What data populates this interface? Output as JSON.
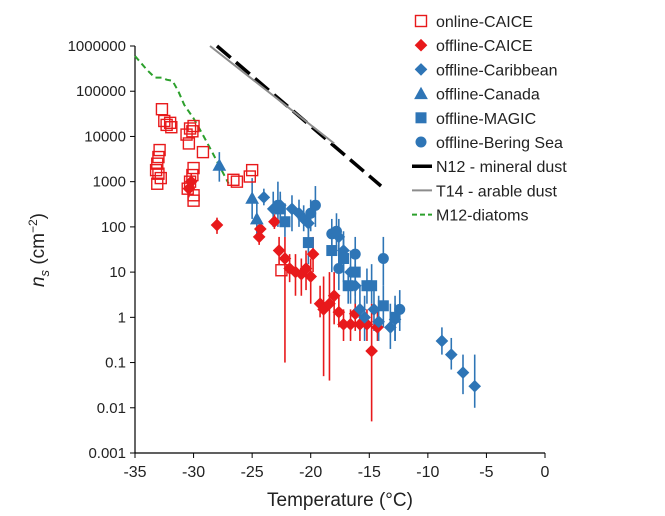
{
  "chart_data": {
    "type": "scatter",
    "title": "",
    "xlabel": "Temperature (°C)",
    "ylabel_main": "n",
    "ylabel_sub": "s",
    "ylabel_unit": " (cm",
    "ylabel_exp": "−2",
    "ylabel_close": ")",
    "xlim": [
      -35,
      0
    ],
    "ylim": [
      0.001,
      1000000
    ],
    "y_scale": "log",
    "grid": false,
    "legend_position": "top-right",
    "x_ticks": [
      -35,
      -30,
      -25,
      -20,
      -15,
      -10,
      -5,
      0
    ],
    "x_tick_labels": [
      "-35",
      "-30",
      "-25",
      "-20",
      "-15",
      "-10",
      "-5",
      "0"
    ],
    "y_ticks": [
      0.001,
      0.01,
      0.1,
      1,
      10,
      100,
      1000,
      10000,
      100000,
      1000000
    ],
    "y_tick_labels": [
      "0.001",
      "0.01",
      "0.1",
      "1",
      "10",
      "100",
      "1000",
      "10000",
      "100000",
      "1000000"
    ],
    "series": [
      {
        "name": "online-CAICE",
        "marker": "square-open",
        "color": "#e8191b",
        "points": [
          {
            "x": -33.2,
            "y": 1800
          },
          {
            "x": -33.1,
            "y": 2500
          },
          {
            "x": -33.0,
            "y": 1500
          },
          {
            "x": -33.0,
            "y": 3500
          },
          {
            "x": -32.9,
            "y": 5000
          },
          {
            "x": -33.1,
            "y": 900
          },
          {
            "x": -32.8,
            "y": 1200
          },
          {
            "x": -32.7,
            "y": 40000
          },
          {
            "x": -32.5,
            "y": 22000
          },
          {
            "x": -32.3,
            "y": 18000
          },
          {
            "x": -32.0,
            "y": 20000
          },
          {
            "x": -31.9,
            "y": 16000
          },
          {
            "x": -30.6,
            "y": 11000
          },
          {
            "x": -30.4,
            "y": 7000
          },
          {
            "x": -30.3,
            "y": 15000
          },
          {
            "x": -30.1,
            "y": 13000
          },
          {
            "x": -30.0,
            "y": 17000
          },
          {
            "x": -30.5,
            "y": 700
          },
          {
            "x": -30.3,
            "y": 1000
          },
          {
            "x": -30.1,
            "y": 1400
          },
          {
            "x": -30.0,
            "y": 2000
          },
          {
            "x": -30.0,
            "y": 500
          },
          {
            "x": -30.0,
            "y": 380
          },
          {
            "x": -29.2,
            "y": 4500
          },
          {
            "x": -26.6,
            "y": 1100
          },
          {
            "x": -26.3,
            "y": 1000
          },
          {
            "x": -25.2,
            "y": 1300
          },
          {
            "x": -25.0,
            "y": 1800
          },
          {
            "x": -22.5,
            "y": 11
          }
        ]
      },
      {
        "name": "offline-CAICE",
        "marker": "diamond",
        "color": "#e8191b",
        "points": [
          {
            "x": -30.4,
            "y": 700,
            "lo": 450,
            "hi": 1100
          },
          {
            "x": -30.2,
            "y": 1000,
            "lo": 600,
            "hi": 1500
          },
          {
            "x": -28.0,
            "y": 110,
            "lo": 70,
            "hi": 160
          },
          {
            "x": -24.4,
            "y": 60,
            "lo": 40,
            "hi": 90
          },
          {
            "x": -24.3,
            "y": 90,
            "lo": 60,
            "hi": 140
          },
          {
            "x": -23.1,
            "y": 130,
            "lo": 90,
            "hi": 190
          },
          {
            "x": -22.7,
            "y": 30,
            "lo": 15,
            "hi": 60
          },
          {
            "x": -22.2,
            "y": 20,
            "lo": 0.1,
            "hi": 60
          },
          {
            "x": -21.8,
            "y": 12,
            "lo": 6,
            "hi": 25
          },
          {
            "x": -21.3,
            "y": 10,
            "lo": 3,
            "hi": 25
          },
          {
            "x": -20.8,
            "y": 9,
            "lo": 3,
            "hi": 20
          },
          {
            "x": -20.4,
            "y": 12,
            "lo": 4,
            "hi": 30
          },
          {
            "x": -20.0,
            "y": 8,
            "lo": 2,
            "hi": 20
          },
          {
            "x": -19.8,
            "y": 25,
            "lo": 10,
            "hi": 60
          },
          {
            "x": -19.2,
            "y": 2,
            "lo": 1,
            "hi": 5
          },
          {
            "x": -18.9,
            "y": 1.5,
            "lo": 0.05,
            "hi": 8
          },
          {
            "x": -18.4,
            "y": 2,
            "lo": 0.04,
            "hi": 10
          },
          {
            "x": -18.0,
            "y": 3,
            "lo": 0.7,
            "hi": 10
          },
          {
            "x": -17.6,
            "y": 1.3,
            "lo": 0.6,
            "hi": 3
          },
          {
            "x": -17.2,
            "y": 0.7,
            "lo": 0.3,
            "hi": 1.5
          },
          {
            "x": -16.6,
            "y": 0.7,
            "lo": 0.3,
            "hi": 1.5
          },
          {
            "x": -16.2,
            "y": 1.2,
            "lo": 0.5,
            "hi": 2.5
          },
          {
            "x": -15.8,
            "y": 0.7,
            "lo": 0.3,
            "hi": 1.5
          },
          {
            "x": -15.2,
            "y": 0.7,
            "lo": 0.3,
            "hi": 1.5
          },
          {
            "x": -14.8,
            "y": 0.18,
            "lo": 0.005,
            "hi": 2
          },
          {
            "x": -14.3,
            "y": 0.6,
            "lo": 0.3,
            "hi": 1.5
          }
        ]
      },
      {
        "name": "offline-Caribbean",
        "marker": "diamond",
        "color": "#2e75b6",
        "points": [
          {
            "x": -24.0,
            "y": 450,
            "lo": 300,
            "hi": 700
          },
          {
            "x": -23.2,
            "y": 250,
            "lo": 100,
            "hi": 600
          },
          {
            "x": -22.6,
            "y": 300,
            "lo": 100,
            "hi": 600
          },
          {
            "x": -21.6,
            "y": 250,
            "lo": 80,
            "hi": 500
          },
          {
            "x": -21.0,
            "y": 200,
            "lo": 100,
            "hi": 400
          },
          {
            "x": -20.6,
            "y": 150,
            "lo": 80,
            "hi": 300
          },
          {
            "x": -20.2,
            "y": 120,
            "lo": 60,
            "hi": 250
          },
          {
            "x": -17.6,
            "y": 60,
            "lo": 20,
            "hi": 150
          },
          {
            "x": -17.2,
            "y": 30,
            "lo": 10,
            "hi": 80
          },
          {
            "x": -16.6,
            "y": 10,
            "lo": 2,
            "hi": 30
          },
          {
            "x": -16.2,
            "y": 5,
            "lo": 2,
            "hi": 15
          },
          {
            "x": -15.8,
            "y": 1.5,
            "lo": 0.5,
            "hi": 5
          },
          {
            "x": -15.4,
            "y": 1.0,
            "lo": 0.3,
            "hi": 3
          },
          {
            "x": -14.6,
            "y": 1.5,
            "lo": 0.5,
            "hi": 5
          },
          {
            "x": -14.2,
            "y": 0.8,
            "lo": 0.3,
            "hi": 3
          },
          {
            "x": -13.2,
            "y": 0.6,
            "lo": 0.2,
            "hi": 2
          },
          {
            "x": -12.8,
            "y": 0.9,
            "lo": 0.3,
            "hi": 2
          },
          {
            "x": -8.8,
            "y": 0.3,
            "lo": 0.15,
            "hi": 0.6
          },
          {
            "x": -8.0,
            "y": 0.15,
            "lo": 0.07,
            "hi": 0.35
          },
          {
            "x": -7.0,
            "y": 0.06,
            "lo": 0.02,
            "hi": 0.15
          },
          {
            "x": -6.0,
            "y": 0.03,
            "lo": 0.01,
            "hi": 0.15
          }
        ]
      },
      {
        "name": "offline-Canada",
        "marker": "triangle",
        "color": "#2e75b6",
        "points": [
          {
            "x": -27.8,
            "y": 2300,
            "lo": 1000,
            "hi": 4500
          },
          {
            "x": -25.0,
            "y": 430,
            "lo": 150,
            "hi": 1200
          },
          {
            "x": -24.6,
            "y": 150,
            "lo": 60,
            "hi": 350
          }
        ]
      },
      {
        "name": "offline-MAGIC",
        "marker": "square",
        "color": "#2e75b6",
        "points": [
          {
            "x": -22.6,
            "y": 250,
            "lo": 120,
            "hi": 500
          },
          {
            "x": -22.2,
            "y": 130,
            "lo": 60,
            "hi": 300
          },
          {
            "x": -20.2,
            "y": 45,
            "lo": 15,
            "hi": 120
          },
          {
            "x": -18.2,
            "y": 30,
            "lo": 10,
            "hi": 80
          },
          {
            "x": -17.2,
            "y": 20,
            "lo": 6,
            "hi": 60
          },
          {
            "x": -16.8,
            "y": 5,
            "lo": 2,
            "hi": 12
          },
          {
            "x": -16.2,
            "y": 10,
            "lo": 3,
            "hi": 25
          },
          {
            "x": -15.2,
            "y": 5,
            "lo": 2,
            "hi": 12
          },
          {
            "x": -14.8,
            "y": 5,
            "lo": 2,
            "hi": 15
          },
          {
            "x": -13.8,
            "y": 1.8,
            "lo": 0.6,
            "hi": 5
          },
          {
            "x": -12.8,
            "y": 1.0,
            "lo": 0.3,
            "hi": 3
          }
        ]
      },
      {
        "name": "offline-Bering Sea",
        "marker": "circle",
        "color": "#2e75b6",
        "points": [
          {
            "x": -22.8,
            "y": 300,
            "lo": 100,
            "hi": 1000
          },
          {
            "x": -20.0,
            "y": 200,
            "lo": 80,
            "hi": 400
          },
          {
            "x": -19.6,
            "y": 300,
            "lo": 100,
            "hi": 800
          },
          {
            "x": -18.2,
            "y": 70,
            "lo": 25,
            "hi": 150
          },
          {
            "x": -17.8,
            "y": 80,
            "lo": 30,
            "hi": 200
          },
          {
            "x": -17.6,
            "y": 12,
            "lo": 4,
            "hi": 35
          },
          {
            "x": -16.2,
            "y": 25,
            "lo": 8,
            "hi": 60
          },
          {
            "x": -13.8,
            "y": 20,
            "lo": 5,
            "hi": 60
          },
          {
            "x": -12.4,
            "y": 1.5,
            "lo": 0.5,
            "hi": 4
          }
        ]
      }
    ],
    "lines": [
      {
        "name": "N12 - mineral dust",
        "style": "dashed",
        "color": "#000000",
        "x": [
          -28,
          -14
        ],
        "y": [
          1100000,
          800
        ]
      },
      {
        "name": "T14 - arable dust",
        "style": "solid",
        "color": "#8c8c8c",
        "x": [
          -28.6,
          -18
        ],
        "y": [
          1000000,
          7000
        ]
      },
      {
        "name": "M12-diatoms",
        "style": "dashed",
        "color": "#2ca02c",
        "x": [
          -35,
          -34,
          -33.3,
          -32.7,
          -32.3,
          -31.8,
          -31.3,
          -30.8,
          -30.0,
          -29.3,
          -28.5,
          -27.7,
          -27.0
        ],
        "y": [
          600000,
          300000,
          200000,
          200000,
          180000,
          170000,
          100000,
          50000,
          25000,
          12000,
          5000,
          2000,
          900
        ]
      }
    ],
    "legend": [
      {
        "label": "online-CAICE",
        "symbol": "square-open",
        "color": "#e8191b"
      },
      {
        "label": "offline-CAICE",
        "symbol": "diamond",
        "color": "#e8191b"
      },
      {
        "label": "offline-Caribbean",
        "symbol": "diamond",
        "color": "#2e75b6"
      },
      {
        "label": "offline-Canada",
        "symbol": "triangle",
        "color": "#2e75b6"
      },
      {
        "label": "offline-MAGIC",
        "symbol": "square",
        "color": "#2e75b6"
      },
      {
        "label": "offline-Bering Sea",
        "symbol": "circle",
        "color": "#2e75b6"
      },
      {
        "label": "N12 - mineral dust",
        "symbol": "line-dashed",
        "color": "#000000"
      },
      {
        "label": "T14 - arable dust",
        "symbol": "line-solid",
        "color": "#8c8c8c"
      },
      {
        "label": "M12-diatoms",
        "symbol": "line-dashed",
        "color": "#2ca02c"
      }
    ]
  }
}
